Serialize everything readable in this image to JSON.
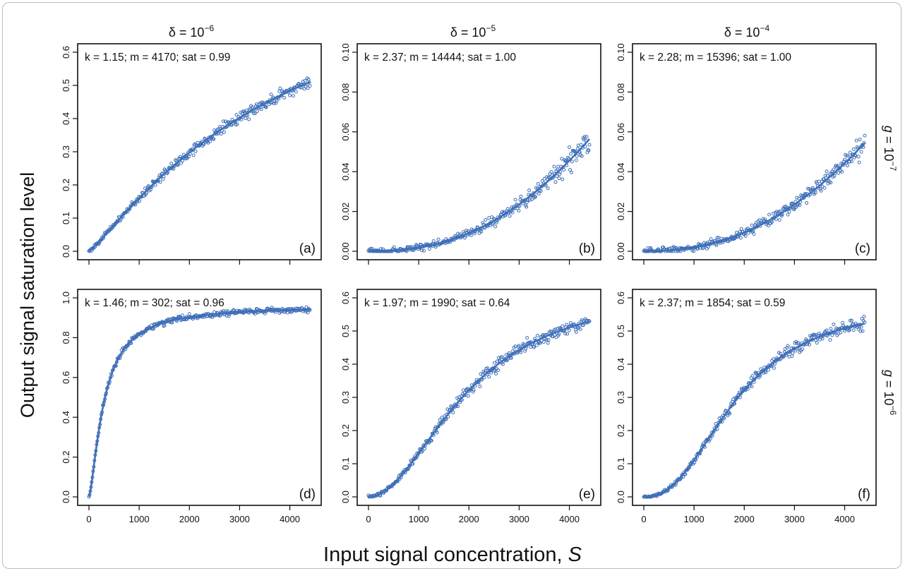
{
  "figure": {
    "xlabel_main": "Input signal concentration, ",
    "xlabel_var": "S",
    "ylabel": "Output signal saturation level",
    "columns": [
      {
        "prefix": "δ = 10",
        "exp": "−6"
      },
      {
        "prefix": "δ = 10",
        "exp": "−5"
      },
      {
        "prefix": "δ = 10",
        "exp": "−4"
      }
    ],
    "rows": [
      {
        "var": "g",
        "rest": " = 10",
        "exp": "−7"
      },
      {
        "var": "g",
        "rest": " = 10",
        "exp": "−6"
      }
    ],
    "colors": {
      "points": "#3f6fb8",
      "line": "#3f6fb8",
      "axes": "#111111"
    }
  },
  "chart_data": [
    {
      "type": "scatter",
      "label": "(a)",
      "annotation": "k = 1.15; m = 4170; sat = 0.99",
      "k": 1.15,
      "m": 4170,
      "sat": 0.99,
      "noise": 0.012,
      "xlim": [
        0,
        4400
      ],
      "ylim": [
        0,
        0.6
      ],
      "yticks": [
        0.0,
        0.1,
        0.2,
        0.3,
        0.4,
        0.5,
        0.6
      ],
      "ytick_labels": [
        "0.0",
        "0.1",
        "0.2",
        "0.3",
        "0.4",
        "0.5",
        "0.6"
      ],
      "xticks": [
        0,
        1000,
        2000,
        3000,
        4000
      ],
      "xtick_labels": []
    },
    {
      "type": "scatter",
      "label": "(b)",
      "annotation": "k = 2.37; m = 14444; sat = 1.00",
      "k": 2.37,
      "m": 14444,
      "sat": 1.0,
      "noise": 0.004,
      "xlim": [
        0,
        4400
      ],
      "ylim": [
        0,
        0.1
      ],
      "yticks": [
        0.0,
        0.02,
        0.04,
        0.06,
        0.08,
        0.1
      ],
      "ytick_labels": [
        "0.00",
        "0.02",
        "0.04",
        "0.06",
        "0.08",
        "0.10"
      ],
      "xticks": [
        0,
        1000,
        2000,
        3000,
        4000
      ],
      "xtick_labels": []
    },
    {
      "type": "scatter",
      "label": "(c)",
      "annotation": "k = 2.28; m = 15396; sat = 1.00",
      "k": 2.28,
      "m": 15396,
      "sat": 1.0,
      "noise": 0.004,
      "xlim": [
        0,
        4400
      ],
      "ylim": [
        0,
        0.1
      ],
      "yticks": [
        0.0,
        0.02,
        0.04,
        0.06,
        0.08,
        0.1
      ],
      "ytick_labels": [
        "0.00",
        "0.02",
        "0.04",
        "0.06",
        "0.08",
        "0.10"
      ],
      "xticks": [
        0,
        1000,
        2000,
        3000,
        4000
      ],
      "xtick_labels": []
    },
    {
      "type": "scatter",
      "label": "(d)",
      "annotation": "k = 1.46; m = 302; sat = 0.96",
      "k": 1.46,
      "m": 302,
      "sat": 0.96,
      "noise": 0.01,
      "xlim": [
        0,
        4400
      ],
      "ylim": [
        0,
        1.0
      ],
      "yticks": [
        0.0,
        0.2,
        0.4,
        0.6,
        0.8,
        1.0
      ],
      "ytick_labels": [
        "0.0",
        "0.2",
        "0.4",
        "0.6",
        "0.8",
        "1.0"
      ],
      "xticks": [
        0,
        1000,
        2000,
        3000,
        4000
      ],
      "xtick_labels": [
        "0",
        "1000",
        "2000",
        "3000",
        "4000"
      ]
    },
    {
      "type": "scatter",
      "label": "(e)",
      "annotation": "k = 1.97; m = 1990; sat = 0.64",
      "k": 1.97,
      "m": 1990,
      "sat": 0.64,
      "noise": 0.013,
      "xlim": [
        0,
        4400
      ],
      "ylim": [
        0,
        0.6
      ],
      "yticks": [
        0.0,
        0.1,
        0.2,
        0.3,
        0.4,
        0.5,
        0.6
      ],
      "ytick_labels": [
        "0.0",
        "0.1",
        "0.2",
        "0.3",
        "0.4",
        "0.5",
        "0.6"
      ],
      "xticks": [
        0,
        1000,
        2000,
        3000,
        4000
      ],
      "xtick_labels": [
        "0",
        "1000",
        "2000",
        "3000",
        "4000"
      ]
    },
    {
      "type": "scatter",
      "label": "(f)",
      "annotation": "k = 2.37; m = 1854; sat = 0.59",
      "k": 2.37,
      "m": 1854,
      "sat": 0.59,
      "noise": 0.013,
      "xlim": [
        0,
        4400
      ],
      "ylim": [
        0,
        0.6
      ],
      "yticks": [
        0.0,
        0.1,
        0.2,
        0.3,
        0.4,
        0.5,
        0.6
      ],
      "ytick_labels": [
        "0.0",
        "0.1",
        "0.2",
        "0.3",
        "0.4",
        "0.5",
        "0.6"
      ],
      "xticks": [
        0,
        1000,
        2000,
        3000,
        4000
      ],
      "xtick_labels": [
        "0",
        "1000",
        "2000",
        "3000",
        "4000"
      ]
    }
  ]
}
